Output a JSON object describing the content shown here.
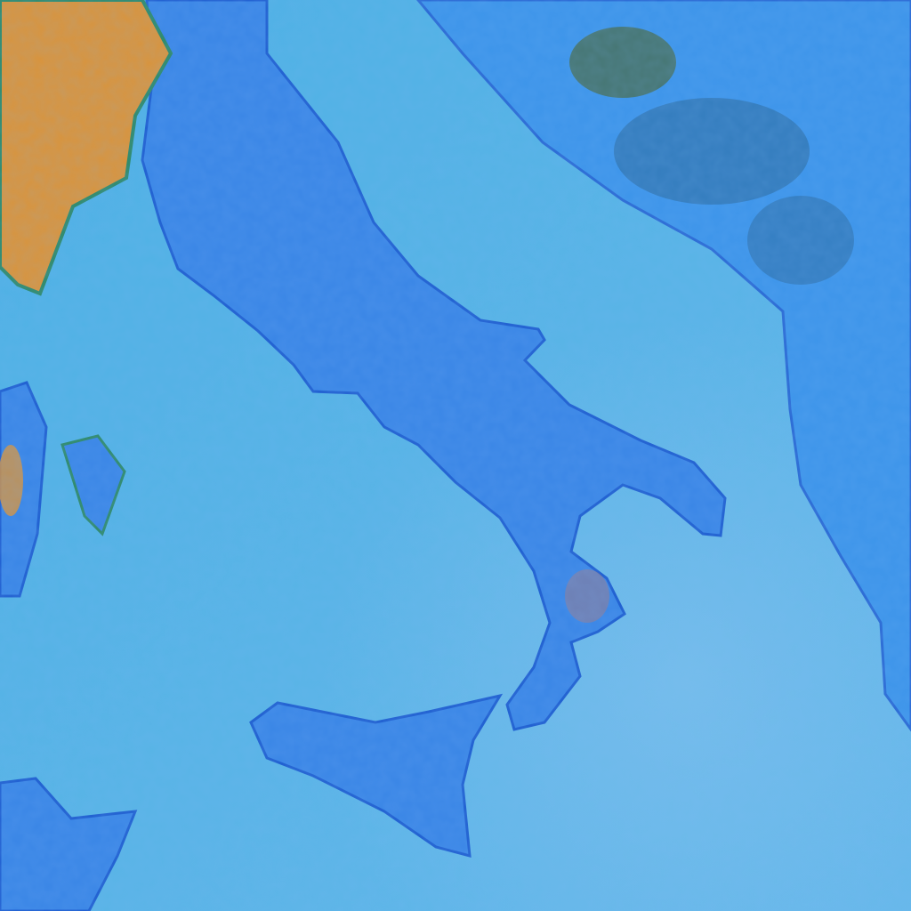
{
  "image": {
    "kind": "false-color satellite image",
    "colors": {
      "sea": "#52b2e8",
      "land": "#3a86e6",
      "coast": "#1f5fd0",
      "alps": "#d9943c",
      "cloud_shadow": "#2a5f8a"
    }
  }
}
